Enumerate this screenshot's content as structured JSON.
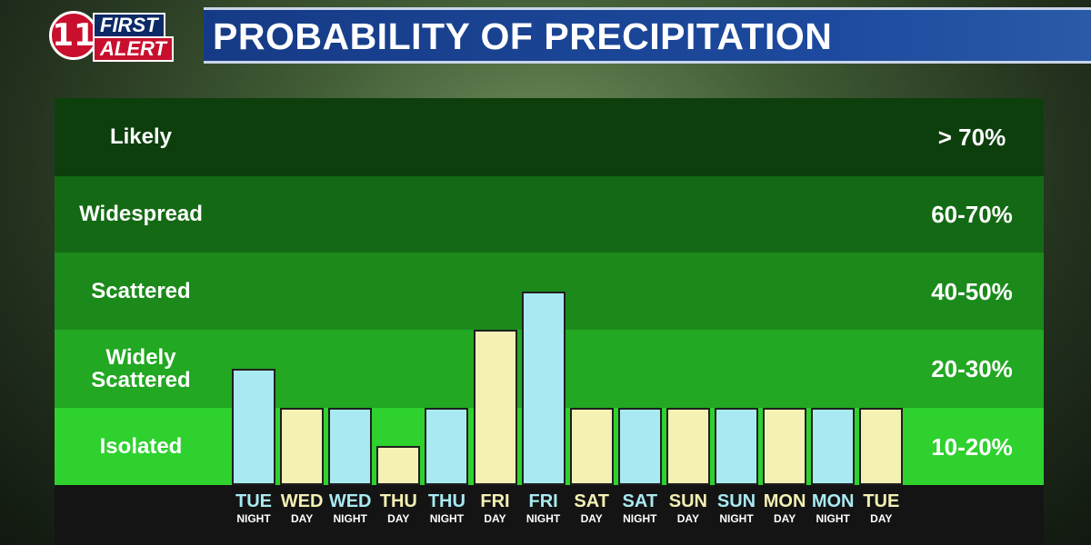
{
  "logo": {
    "numeral": "11",
    "word1": "FIRST",
    "word2": "ALERT"
  },
  "title": "PROBABILITY OF PRECIPITATION",
  "colors": {
    "day_bar": "#f5f0b3",
    "night_bar": "#a9eaf2",
    "day_text": "#f5f0b3",
    "night_text": "#a9eaf2",
    "band_likely": "#0d3f0d",
    "band_widespread": "#146a14",
    "band_scattered": "#1b8a1b",
    "band_widely_scattered": "#22a822",
    "band_isolated": "#2ed12e"
  },
  "chart_data": {
    "type": "bar",
    "title": "PROBABILITY OF PRECIPITATION",
    "bands": [
      {
        "label": "Likely",
        "range": "> 70%",
        "min": 70,
        "max": 80
      },
      {
        "label": "Widespread",
        "range": "60-70%",
        "min": 60,
        "max": 70
      },
      {
        "label": "Scattered",
        "range": "40-50%",
        "min": 40,
        "max": 60
      },
      {
        "label": "Widely Scattered",
        "range": "20-30%",
        "min": 20,
        "max": 40
      },
      {
        "label": "Isolated",
        "range": "10-20%",
        "min": 0,
        "max": 20
      }
    ],
    "categories": [
      {
        "day": "TUE",
        "period": "NIGHT",
        "value": 30
      },
      {
        "day": "WED",
        "period": "DAY",
        "value": 20
      },
      {
        "day": "WED",
        "period": "NIGHT",
        "value": 20
      },
      {
        "day": "THU",
        "period": "DAY",
        "value": 10
      },
      {
        "day": "THU",
        "period": "NIGHT",
        "value": 20
      },
      {
        "day": "FRI",
        "period": "DAY",
        "value": 40
      },
      {
        "day": "FRI",
        "period": "NIGHT",
        "value": 50
      },
      {
        "day": "SAT",
        "period": "DAY",
        "value": 20
      },
      {
        "day": "SAT",
        "period": "NIGHT",
        "value": 20
      },
      {
        "day": "SUN",
        "period": "DAY",
        "value": 20
      },
      {
        "day": "SUN",
        "period": "NIGHT",
        "value": 20
      },
      {
        "day": "MON",
        "period": "DAY",
        "value": 20
      },
      {
        "day": "MON",
        "period": "NIGHT",
        "value": 20
      },
      {
        "day": "TUE",
        "period": "DAY",
        "value": 20
      }
    ],
    "ylim": [
      0,
      80
    ]
  }
}
